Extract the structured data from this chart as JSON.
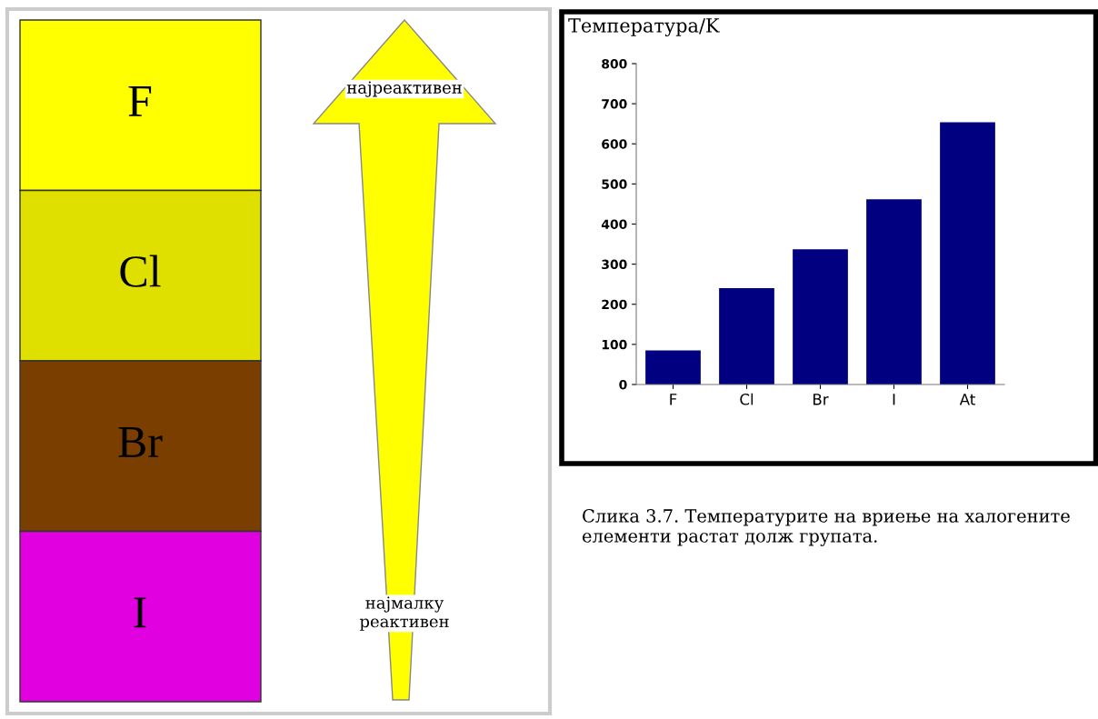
{
  "chart_data": [
    {
      "type": "other",
      "categories": [
        "F",
        "Cl",
        "Br",
        "I"
      ],
      "colors": [
        "#ffff00",
        "#e0e000",
        "#7a3f00",
        "#e000e0"
      ],
      "annotations": [
        "најреактивен",
        "најмалку\nреактивен"
      ]
    },
    {
      "type": "bar",
      "ylabel": "Температура/K",
      "categories": [
        "F",
        "Cl",
        "Br",
        "I",
        "At"
      ],
      "values": [
        85,
        240,
        337,
        462,
        654
      ],
      "color": "#000080",
      "ylim": [
        0,
        800
      ],
      "yticks": [
        0,
        100,
        200,
        300,
        400,
        500,
        600,
        700,
        800
      ],
      "grid": false,
      "annotations": [
        "Слика 3.7. Температурите на вриење на халогените елементи растат долж групата."
      ]
    }
  ]
}
